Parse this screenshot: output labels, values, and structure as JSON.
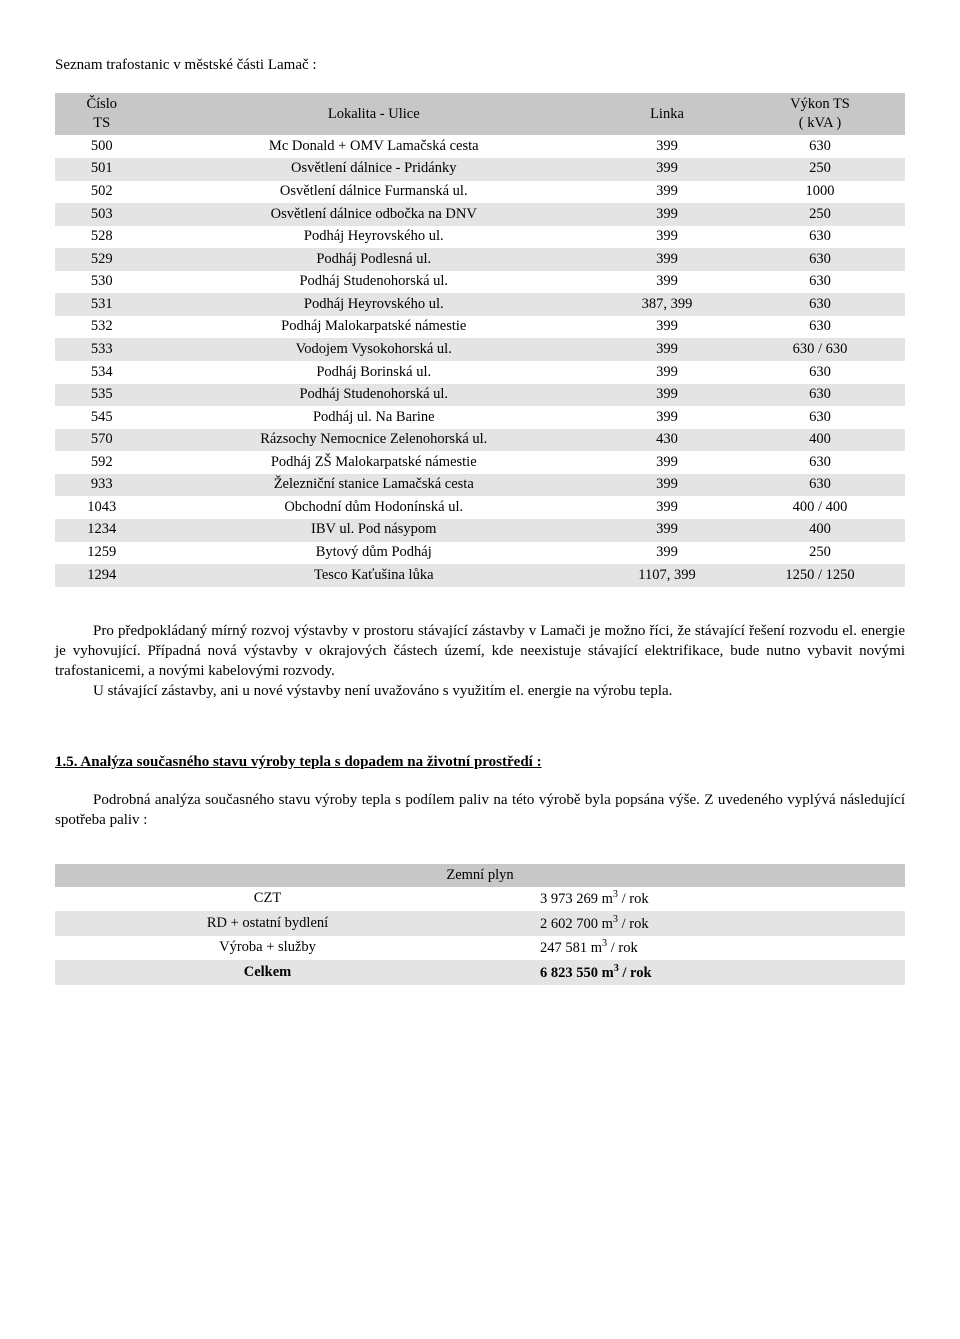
{
  "intro": "Seznam trafostanic v městské části Lamač :",
  "table1": {
    "headers": {
      "c1": "Číslo\nTS",
      "c2": "Lokalita - Ulice",
      "c3": "Linka",
      "c4": "Výkon TS\n( kVA )"
    },
    "rows": [
      [
        "500",
        "Mc Donald + OMV Lamačská cesta",
        "399",
        "630"
      ],
      [
        "501",
        "Osvětlení dálnice - Pridánky",
        "399",
        "250"
      ],
      [
        "502",
        "Osvětlení dálnice Furmanská ul.",
        "399",
        "1000"
      ],
      [
        "503",
        "Osvětlení dálnice odbočka na DNV",
        "399",
        "250"
      ],
      [
        "528",
        "Podháj Heyrovského ul.",
        "399",
        "630"
      ],
      [
        "529",
        "Podháj Podlesná ul.",
        "399",
        "630"
      ],
      [
        "530",
        "Podháj Studenohorská ul.",
        "399",
        "630"
      ],
      [
        "531",
        "Podháj Heyrovského ul.",
        "387, 399",
        "630"
      ],
      [
        "532",
        "Podháj Malokarpatské námestie",
        "399",
        "630"
      ],
      [
        "533",
        "Vodojem Vysokohorská ul.",
        "399",
        "630 / 630"
      ],
      [
        "534",
        "Podháj Borinská ul.",
        "399",
        "630"
      ],
      [
        "535",
        "Podháj Studenohorská ul.",
        "399",
        "630"
      ],
      [
        "545",
        "Podháj ul. Na Barine",
        "399",
        "630"
      ],
      [
        "570",
        "Rázsochy Nemocnice Zelenohorská ul.",
        "430",
        "400"
      ],
      [
        "592",
        "Podháj ZŠ Malokarpatské námestie",
        "399",
        "630"
      ],
      [
        "933",
        "Železniční stanice Lamačská cesta",
        "399",
        "630"
      ],
      [
        "1043",
        "Obchodní dům Hodonínská ul.",
        "399",
        "400 / 400"
      ],
      [
        "1234",
        "IBV ul. Pod násypom",
        "399",
        "400"
      ],
      [
        "1259",
        "Bytový dům Podháj",
        "399",
        "250"
      ],
      [
        "1294",
        "Tesco Kaťušina lůka",
        "1107, 399",
        "1250 / 1250"
      ]
    ]
  },
  "para1": "Pro předpokládaný mírný rozvoj výstavby v prostoru stávající zástavby v Lamači je možno říci,  že stávající řešení rozvodu el. energie je vyhovující. Případná nová výstavby v okrajových částech území, kde neexistuje stávající elektrifikace, bude nutno vybavit novými trafostanicemi, a novými kabelovými rozvody.",
  "para2": "U stávající zástavby, ani u nové výstavby není uvažováno s využitím el. energie na výrobu tepla.",
  "section": "1.5.  Analýza současného stavu výroby tepla s dopadem na životní prostředí :",
  "para3": "Podrobná analýza současného stavu výroby tepla s podílem paliv na této výrobě byla popsána výše. Z uvedeného vyplývá následující spotřeba paliv :",
  "gas": {
    "title": "Zemní plyn",
    "rows": [
      {
        "label": "CZT",
        "value": "3 973 269 m",
        "unit": "3",
        "suffix": " / rok"
      },
      {
        "label": "RD + ostatní bydlení",
        "value": "2 602 700 m",
        "unit": "3",
        "suffix": " / rok"
      },
      {
        "label": "Výroba + služby",
        "value": "247 581 m",
        "unit": "3",
        "suffix": " / rok"
      },
      {
        "label": "Celkem",
        "value": "6 823 550 m",
        "unit": "3",
        "suffix": " / rok"
      }
    ]
  }
}
